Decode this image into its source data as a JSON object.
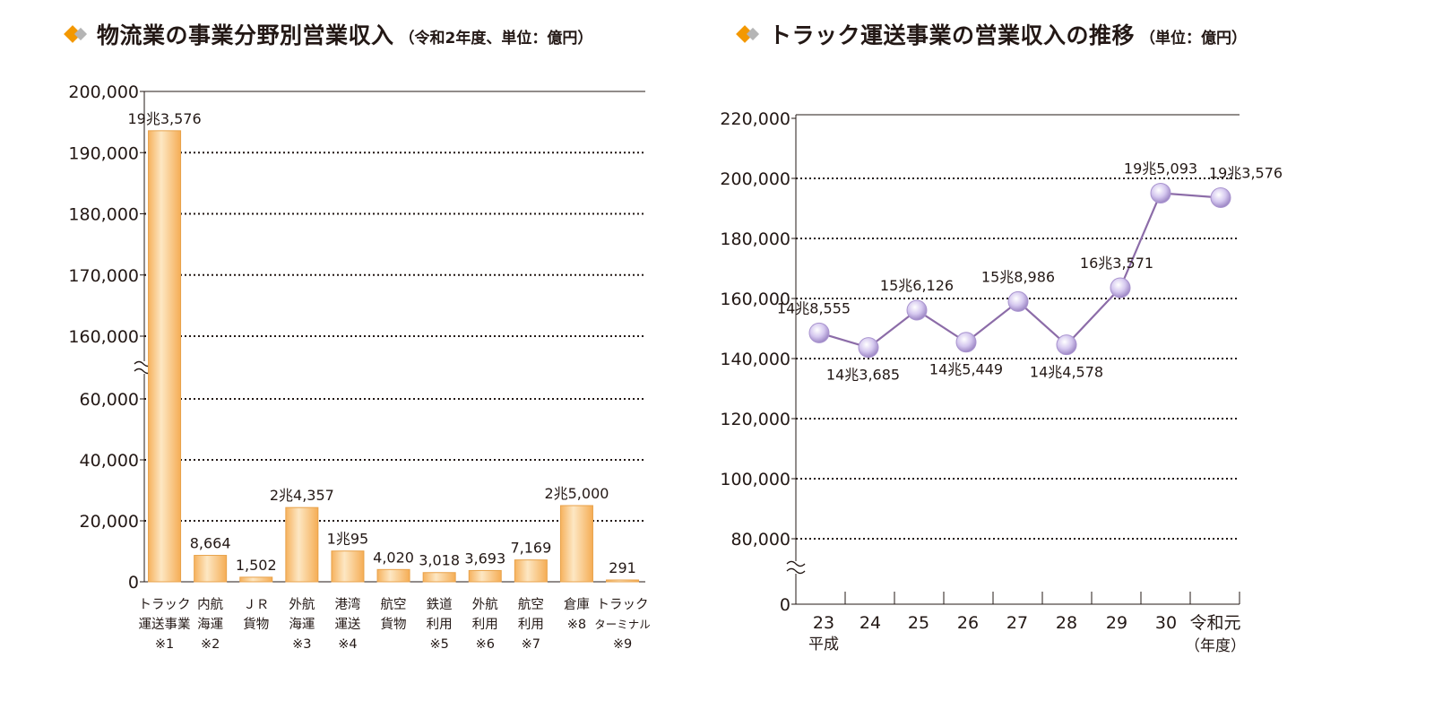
{
  "colors": {
    "accent": "#f39800",
    "bar": "#f9c57a",
    "bar_edge": "#e8a24a",
    "line": "#8c6ca8",
    "marker": "#c7b6e6",
    "axis": "#231815"
  },
  "left_title": {
    "main": "物流業の事業分野別営業収入",
    "sub": "（令和2年度、単位：億円）"
  },
  "right_title": {
    "main": "トラック運送事業の営業収入の推移",
    "sub": "（単位：億円）"
  },
  "chart_data": [
    {
      "type": "bar",
      "y_axis_break": true,
      "yticks": [
        "0",
        "20,000",
        "40,000",
        "60,000",
        "160,000",
        "170,000",
        "180,000",
        "190,000",
        "200,000"
      ],
      "grid": "dotted",
      "categories": [
        [
          "トラック",
          "運送事業",
          "※1"
        ],
        [
          "内航",
          "海運",
          "※2"
        ],
        [
          "ＪＲ",
          "貨物"
        ],
        [
          "外航",
          "海運",
          "※3"
        ],
        [
          "港湾",
          "運送",
          "※4"
        ],
        [
          "航空",
          "貨物"
        ],
        [
          "鉄道",
          "利用",
          "※5"
        ],
        [
          "外航",
          "利用",
          "※6"
        ],
        [
          "航空",
          "利用",
          "※7"
        ],
        [
          "倉庫",
          "※8"
        ],
        [
          "トラック",
          "ターミナル",
          "※9"
        ]
      ],
      "values": [
        193576,
        8664,
        1502,
        24357,
        10095,
        4020,
        3018,
        3693,
        7169,
        25000,
        291
      ],
      "labels": [
        "19兆3,576",
        "8,664",
        "1,502",
        "2兆4,357",
        "1兆95",
        "4,020",
        "3,018",
        "3,693",
        "7,169",
        "2兆5,000",
        "291"
      ]
    },
    {
      "type": "line",
      "y_axis_break": true,
      "yticks": [
        "0",
        "80,000",
        "100,000",
        "120,000",
        "140,000",
        "160,000",
        "180,000",
        "200,000",
        "220,000"
      ],
      "grid": "dotted",
      "x": [
        "23",
        "24",
        "25",
        "26",
        "27",
        "28",
        "29",
        "30",
        "令和元"
      ],
      "x_extra": [
        "平成",
        "（年度）"
      ],
      "values": [
        148555,
        143685,
        156126,
        145449,
        158986,
        144578,
        163571,
        195093,
        193576
      ],
      "labels": [
        "14兆8,555",
        "14兆3,685",
        "15兆6,126",
        "14兆5,449",
        "15兆8,986",
        "14兆4,578",
        "16兆3,571",
        "19兆5,093",
        "19兆3,576"
      ]
    }
  ]
}
